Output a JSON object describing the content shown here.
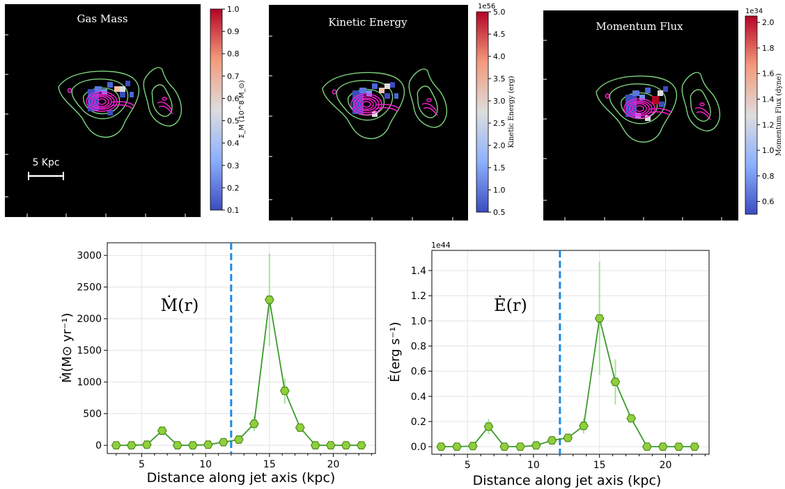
{
  "maps": [
    {
      "title": "Gas Mass",
      "scale_label": "5 Kpc",
      "colorbar": {
        "label": "Σ_M (10^8 M_⊙)",
        "exponent": "",
        "ticks": [
          "0.1",
          "0.2",
          "0.3",
          "0.4",
          "0.5",
          "0.6",
          "0.7",
          "0.8",
          "0.9",
          "1.0"
        ],
        "vmin": 0.1,
        "vmax": 1.0
      }
    },
    {
      "title": "Kinetic Energy",
      "scale_label": "",
      "colorbar": {
        "label": "Kinetic Energy (erg)",
        "exponent": "1e56",
        "ticks": [
          "0.5",
          "1.0",
          "1.5",
          "2.0",
          "2.5",
          "3.0",
          "3.5",
          "4.0",
          "4.5",
          "5.0"
        ],
        "vmin": 0.5,
        "vmax": 5.0
      }
    },
    {
      "title": "Momentum Flux",
      "scale_label": "",
      "colorbar": {
        "label": "Momentum Flux (dyne)",
        "exponent": "1e34",
        "ticks": [
          "0.6",
          "0.8",
          "1.0",
          "1.2",
          "1.4",
          "1.6",
          "1.8",
          "2.0"
        ],
        "vmin": 0.5,
        "vmax": 2.05
      }
    }
  ],
  "chart_data": [
    {
      "type": "line",
      "annotation": "Ṁ(r)",
      "xlabel": "Distance along jet axis  (kpc)",
      "ylabel": "Ṁ(M⊙ yr⁻¹)",
      "xlim": [
        2.3,
        23.3
      ],
      "ylim": [
        -130,
        3200
      ],
      "xticks": [
        5,
        10,
        15,
        20
      ],
      "yticks": [
        0,
        500,
        1000,
        1500,
        2000,
        2500,
        3000
      ],
      "exponent_label": "",
      "vline_x": 12,
      "grid": true,
      "series": [
        {
          "name": "Mdot",
          "x": [
            3.0,
            4.2,
            5.4,
            6.6,
            7.8,
            9.0,
            10.2,
            11.4,
            12.6,
            13.8,
            15.0,
            16.2,
            17.4,
            18.6,
            19.8,
            21.0,
            22.2
          ],
          "y": [
            0,
            0,
            10,
            230,
            0,
            0,
            10,
            50,
            90,
            340,
            2300,
            860,
            280,
            0,
            0,
            0,
            0
          ],
          "err": [
            0,
            0,
            0,
            60,
            0,
            0,
            0,
            0,
            0,
            120,
            730,
            200,
            50,
            0,
            0,
            0,
            0
          ]
        }
      ]
    },
    {
      "type": "line",
      "annotation": "Ė(r)",
      "xlabel": "Distance along jet axis  (kpc)",
      "ylabel": "Ė(erg s⁻¹)",
      "xlim": [
        2.3,
        23.3
      ],
      "ylim": [
        -0.06,
        1.56
      ],
      "xticks": [
        5,
        10,
        15,
        20
      ],
      "yticks": [
        0.0,
        0.2,
        0.4,
        0.6,
        0.8,
        1.0,
        1.2,
        1.4
      ],
      "exponent_label": "1e44",
      "vline_x": 12,
      "grid": true,
      "series": [
        {
          "name": "Edot",
          "x": [
            3.0,
            4.2,
            5.4,
            6.6,
            7.8,
            9.0,
            10.2,
            11.4,
            12.6,
            13.8,
            15.0,
            16.2,
            17.4,
            18.6,
            19.8,
            21.0,
            22.2
          ],
          "y": [
            0.0,
            0.0,
            0.005,
            0.16,
            0.0,
            0.0,
            0.01,
            0.05,
            0.07,
            0.165,
            1.02,
            0.515,
            0.225,
            0.0,
            0.0,
            0.0,
            0.0
          ],
          "err": [
            0,
            0,
            0,
            0.06,
            0,
            0,
            0,
            0,
            0,
            0.06,
            0.45,
            0.18,
            0.03,
            0,
            0,
            0,
            0
          ]
        }
      ]
    }
  ]
}
